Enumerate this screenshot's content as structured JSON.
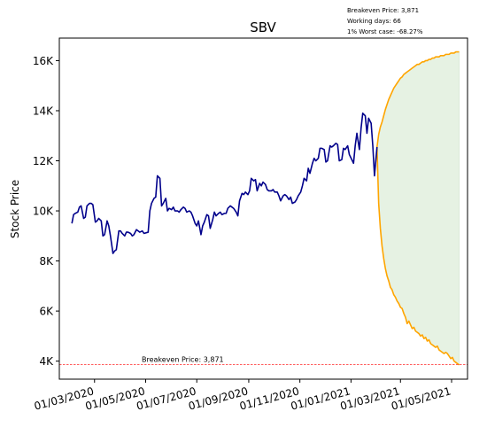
{
  "chart_data": {
    "type": "line",
    "title": "SBV",
    "xlabel": "",
    "ylabel": "Stock Price",
    "x_tick_labels": [
      "01/03/2020",
      "01/05/2020",
      "01/07/2020",
      "01/09/2020",
      "01/11/2020",
      "01/01/2021",
      "01/03/2021",
      "01/05/2021"
    ],
    "x_ticks": [
      "2020-03-01",
      "2020-05-01",
      "2020-07-01",
      "2020-09-01",
      "2020-11-01",
      "2021-01-01",
      "2021-03-01",
      "2021-05-01"
    ],
    "y_ticks": [
      4000,
      6000,
      8000,
      10000,
      12000,
      14000,
      16000
    ],
    "y_tick_labels": [
      "4K",
      "6K",
      "8K",
      "10K",
      "12K",
      "14K",
      "16K"
    ],
    "xlim": [
      "2020-01-19",
      "2021-05-20"
    ],
    "ylim": [
      3280,
      16900
    ],
    "grid": false,
    "info_box": {
      "lines": [
        "Breakeven Price: 3,871",
        "Working days: 66",
        "1% Worst case: -68.27%"
      ]
    },
    "breakeven": {
      "value": 3871,
      "label": "Breakeven Price: 3,871",
      "color": "#ff0000"
    },
    "colors": {
      "history": "#00008b",
      "projection": "#ffa500",
      "band_fill": "#e6f2e3"
    },
    "history": {
      "x": [
        "2020-02-03",
        "2020-02-05",
        "2020-02-07",
        "2020-02-10",
        "2020-02-12",
        "2020-02-14",
        "2020-02-17",
        "2020-02-19",
        "2020-02-21",
        "2020-02-24",
        "2020-02-26",
        "2020-02-28",
        "2020-03-02",
        "2020-03-04",
        "2020-03-06",
        "2020-03-09",
        "2020-03-11",
        "2020-03-13",
        "2020-03-16",
        "2020-03-18",
        "2020-03-20",
        "2020-03-23",
        "2020-03-25",
        "2020-03-27",
        "2020-03-30",
        "2020-04-01",
        "2020-04-03",
        "2020-04-06",
        "2020-04-08",
        "2020-04-10",
        "2020-04-13",
        "2020-04-15",
        "2020-04-17",
        "2020-04-20",
        "2020-04-22",
        "2020-04-24",
        "2020-04-27",
        "2020-04-29",
        "2020-05-04",
        "2020-05-06",
        "2020-05-08",
        "2020-05-11",
        "2020-05-13",
        "2020-05-15",
        "2020-05-18",
        "2020-05-20",
        "2020-05-22",
        "2020-05-25",
        "2020-05-27",
        "2020-05-29",
        "2020-06-01",
        "2020-06-03",
        "2020-06-05",
        "2020-06-08",
        "2020-06-10",
        "2020-06-12",
        "2020-06-15",
        "2020-06-17",
        "2020-06-19",
        "2020-06-22",
        "2020-06-24",
        "2020-06-26",
        "2020-06-29",
        "2020-07-01",
        "2020-07-03",
        "2020-07-06",
        "2020-07-08",
        "2020-07-10",
        "2020-07-13",
        "2020-07-15",
        "2020-07-17",
        "2020-07-20",
        "2020-07-22",
        "2020-07-24",
        "2020-07-27",
        "2020-07-29",
        "2020-07-31",
        "2020-08-03",
        "2020-08-05",
        "2020-08-07",
        "2020-08-10",
        "2020-08-12",
        "2020-08-14",
        "2020-08-17",
        "2020-08-19",
        "2020-08-21",
        "2020-08-24",
        "2020-08-26",
        "2020-08-28",
        "2020-08-31",
        "2020-09-02",
        "2020-09-04",
        "2020-09-07",
        "2020-09-09",
        "2020-09-11",
        "2020-09-14",
        "2020-09-16",
        "2020-09-18",
        "2020-09-21",
        "2020-09-23",
        "2020-09-25",
        "2020-09-28",
        "2020-09-30",
        "2020-10-02",
        "2020-10-05",
        "2020-10-07",
        "2020-10-09",
        "2020-10-12",
        "2020-10-14",
        "2020-10-16",
        "2020-10-19",
        "2020-10-21",
        "2020-10-23",
        "2020-10-26",
        "2020-10-28",
        "2020-10-30",
        "2020-11-02",
        "2020-11-04",
        "2020-11-06",
        "2020-11-09",
        "2020-11-11",
        "2020-11-13",
        "2020-11-16",
        "2020-11-18",
        "2020-11-20",
        "2020-11-23",
        "2020-11-25",
        "2020-11-27",
        "2020-11-30",
        "2020-12-02",
        "2020-12-04",
        "2020-12-07",
        "2020-12-09",
        "2020-12-11",
        "2020-12-14",
        "2020-12-16",
        "2020-12-18",
        "2020-12-21",
        "2020-12-23",
        "2020-12-25",
        "2020-12-28",
        "2020-12-30",
        "2021-01-04",
        "2021-01-06",
        "2021-01-08",
        "2021-01-11",
        "2021-01-13",
        "2021-01-15",
        "2021-01-18",
        "2021-01-20",
        "2021-01-22",
        "2021-01-25",
        "2021-01-27",
        "2021-01-29",
        "2021-02-01"
      ],
      "y": [
        9500,
        9850,
        9900,
        9950,
        10150,
        10200,
        9700,
        9750,
        10200,
        10300,
        10300,
        10250,
        9550,
        9600,
        9700,
        9600,
        9000,
        9050,
        9600,
        9400,
        9000,
        8300,
        8400,
        8450,
        9200,
        9200,
        9100,
        9000,
        9150,
        9150,
        9100,
        9000,
        9050,
        9250,
        9200,
        9150,
        9200,
        9100,
        9150,
        10000,
        10300,
        10500,
        10550,
        11400,
        11300,
        10200,
        10300,
        10500,
        10000,
        10100,
        10050,
        10150,
        10000,
        10000,
        9950,
        10050,
        10150,
        10100,
        9950,
        10000,
        9950,
        9800,
        9500,
        9400,
        9600,
        9050,
        9400,
        9550,
        9850,
        9800,
        9300,
        9650,
        9950,
        9800,
        9900,
        9950,
        9850,
        9900,
        9900,
        10100,
        10200,
        10150,
        10100,
        9950,
        9800,
        10400,
        10700,
        10650,
        10750,
        10650,
        10800,
        11300,
        11200,
        11250,
        10800,
        11100,
        11000,
        11150,
        11050,
        10850,
        10800,
        10800,
        10850,
        10750,
        10750,
        10600,
        10400,
        10600,
        10650,
        10600,
        10450,
        10550,
        10300,
        10350,
        10450,
        10600,
        10750,
        11000,
        11300,
        11200,
        11700,
        11500,
        11900,
        12100,
        12000,
        12100,
        12500,
        12500,
        12450,
        11950,
        12000,
        12600,
        12550,
        12600,
        12700,
        12650,
        12000,
        12050,
        12500,
        12450,
        12600,
        12250,
        11900,
        12600,
        13100,
        12450,
        13300,
        13900,
        13800,
        13100,
        13700,
        13500,
        12600,
        11400,
        12550
      ]
    },
    "projection": {
      "x": [
        "2021-02-01",
        "2021-02-03",
        "2021-02-05",
        "2021-02-07",
        "2021-02-09",
        "2021-02-11",
        "2021-02-13",
        "2021-02-15",
        "2021-02-17",
        "2021-02-19",
        "2021-02-21",
        "2021-02-23",
        "2021-02-25",
        "2021-02-27",
        "2021-03-01",
        "2021-03-03",
        "2021-03-05",
        "2021-03-07",
        "2021-03-09",
        "2021-03-11",
        "2021-03-13",
        "2021-03-15",
        "2021-03-17",
        "2021-03-19",
        "2021-03-21",
        "2021-03-23",
        "2021-03-25",
        "2021-03-27",
        "2021-03-29",
        "2021-03-31",
        "2021-04-02",
        "2021-04-04",
        "2021-04-06",
        "2021-04-08",
        "2021-04-10",
        "2021-04-12",
        "2021-04-14",
        "2021-04-16",
        "2021-04-18",
        "2021-04-20",
        "2021-04-22",
        "2021-04-24",
        "2021-04-26",
        "2021-04-28",
        "2021-04-30",
        "2021-05-02",
        "2021-05-04",
        "2021-05-06",
        "2021-05-08",
        "2021-05-10"
      ],
      "upper": [
        12550,
        13050,
        13350,
        13550,
        13800,
        14050,
        14250,
        14450,
        14600,
        14750,
        14900,
        15000,
        15100,
        15200,
        15300,
        15350,
        15450,
        15500,
        15550,
        15600,
        15650,
        15700,
        15750,
        15800,
        15850,
        15850,
        15900,
        15950,
        15950,
        16000,
        16000,
        16050,
        16050,
        16100,
        16100,
        16150,
        16150,
        16150,
        16200,
        16200,
        16200,
        16250,
        16250,
        16250,
        16300,
        16300,
        16300,
        16350,
        16350,
        16350
      ],
      "lower": [
        12550,
        10300,
        9300,
        8600,
        8100,
        7700,
        7400,
        7200,
        6950,
        6850,
        6650,
        6550,
        6400,
        6300,
        6150,
        6100,
        5900,
        5750,
        5500,
        5600,
        5450,
        5300,
        5350,
        5200,
        5150,
        5100,
        5000,
        5050,
        4900,
        4950,
        4800,
        4850,
        4700,
        4650,
        4600,
        4550,
        4600,
        4450,
        4400,
        4350,
        4300,
        4350,
        4300,
        4200,
        4100,
        4150,
        4000,
        3950,
        3900,
        3850
      ]
    }
  }
}
